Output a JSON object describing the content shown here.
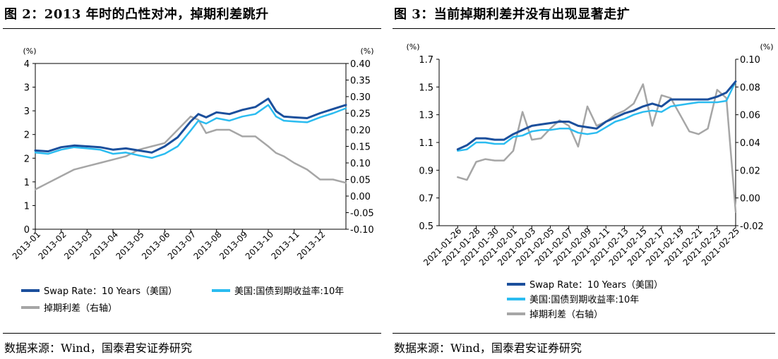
{
  "figures": [
    {
      "title": "图 2：2013 年时的凸性对冲，掉期利差跳升",
      "source": "数据来源：Wind，国泰君安证券研究"
    },
    {
      "title": "图 3：当前掉期利差并没有出现显著走扩",
      "source": "数据来源：Wind，国泰君安证券研究"
    }
  ],
  "chart_data": [
    {
      "type": "line",
      "title": "图 2：2013 年时的凸性对冲，掉期利差跳升",
      "y_left_unit": "(%)",
      "y_right_unit": "(%)",
      "y_left_range": [
        0,
        4
      ],
      "y_left_ticks": [
        "0",
        "1",
        "1",
        "2",
        "2",
        "3",
        "3",
        "4"
      ],
      "y_right_range": [
        -0.1,
        0.4
      ],
      "y_right_ticks": [
        "-0.10",
        "-0.05",
        "0.00",
        "0.05",
        "0.10",
        "0.15",
        "0.20",
        "0.25",
        "0.30",
        "0.35",
        "0.40"
      ],
      "x_ticks": [
        "2013-01",
        "2013-02",
        "2013-03",
        "2013-04",
        "2013-05",
        "2013-06",
        "2013-07",
        "2013-08",
        "2013-09",
        "2013-10",
        "2013-11",
        "2013-12"
      ],
      "x_months": [
        0,
        0.5,
        1,
        1.5,
        2,
        2.5,
        3,
        3.5,
        4,
        4.5,
        5,
        5.5,
        6,
        6.3,
        6.6,
        7,
        7.5,
        8,
        8.5,
        9,
        9.3,
        9.6,
        10,
        10.5,
        11,
        11.5,
        12
      ],
      "series": [
        {
          "name": "Swap Rate：10 Years（美国）",
          "axis": "left",
          "color": "#1b4f9c",
          "values": [
            1.9,
            1.88,
            1.98,
            2.02,
            2.0,
            1.98,
            1.92,
            1.95,
            1.9,
            1.85,
            2.0,
            2.22,
            2.6,
            2.78,
            2.7,
            2.82,
            2.78,
            2.88,
            2.95,
            3.15,
            2.85,
            2.72,
            2.7,
            2.68,
            2.8,
            2.9,
            3.0
          ]
        },
        {
          "name": "美国:国债到期收益率:10年",
          "axis": "left",
          "color": "#2bbcf0",
          "values": [
            1.85,
            1.82,
            1.92,
            1.98,
            1.95,
            1.92,
            1.82,
            1.85,
            1.78,
            1.72,
            1.82,
            2.0,
            2.38,
            2.62,
            2.55,
            2.68,
            2.62,
            2.72,
            2.78,
            3.0,
            2.72,
            2.62,
            2.6,
            2.58,
            2.7,
            2.8,
            2.92
          ]
        },
        {
          "name": "掉期利差（右轴）",
          "axis": "right",
          "color": "#a6a6a6",
          "values": [
            0.02,
            0.04,
            0.06,
            0.08,
            0.09,
            0.1,
            0.11,
            0.12,
            0.14,
            0.15,
            0.16,
            0.2,
            0.24,
            0.23,
            0.19,
            0.2,
            0.2,
            0.18,
            0.18,
            0.15,
            0.13,
            0.12,
            0.1,
            0.08,
            0.05,
            0.05,
            0.04
          ]
        }
      ],
      "legend_position": "bottom"
    },
    {
      "type": "line",
      "title": "图 3：当前掉期利差并没有出现显著走扩",
      "y_left_unit": "(%)",
      "y_right_unit": "(%)",
      "y_left_range": [
        0.5,
        1.7
      ],
      "y_left_ticks": [
        "0.5",
        "0.7",
        "0.9",
        "1.1",
        "1.3",
        "1.5",
        "1.7"
      ],
      "y_right_range": [
        -0.02,
        0.1
      ],
      "y_right_ticks": [
        "-0.02",
        "0.00",
        "0.02",
        "0.04",
        "0.06",
        "0.08",
        "0.10"
      ],
      "x_ticks": [
        "2021-01-26",
        "2021-01-28",
        "2021-01-30",
        "2021-02-01",
        "2021-02-03",
        "2021-02-05",
        "2021-02-07",
        "2021-02-09",
        "2021-02-11",
        "2021-02-13",
        "2021-02-15",
        "2021-02-17",
        "2021-02-19",
        "2021-02-21",
        "2021-02-23",
        "2021-02-25"
      ],
      "x_days": [
        0,
        1,
        2,
        3,
        4,
        5,
        6,
        7,
        8,
        9,
        10,
        11,
        12,
        13,
        14,
        15,
        16,
        17,
        18,
        19,
        20,
        21,
        22,
        23,
        24,
        25,
        26,
        27,
        28,
        29,
        30
      ],
      "series": [
        {
          "name": "Swap Rate：10 Years（美国）",
          "axis": "left",
          "color": "#1b4f9c",
          "values": [
            1.05,
            1.08,
            1.13,
            1.13,
            1.12,
            1.12,
            1.16,
            1.19,
            1.22,
            1.23,
            1.24,
            1.25,
            1.25,
            1.22,
            1.21,
            1.2,
            1.25,
            1.28,
            1.31,
            1.33,
            1.36,
            1.38,
            1.36,
            1.41,
            1.41,
            1.41,
            1.41,
            1.41,
            1.43,
            1.46,
            1.54
          ]
        },
        {
          "name": "美国:国债到期收益率:10年",
          "axis": "left",
          "color": "#2bbcf0",
          "values": [
            1.04,
            1.05,
            1.1,
            1.1,
            1.09,
            1.09,
            1.14,
            1.15,
            1.18,
            1.19,
            1.19,
            1.2,
            1.2,
            1.17,
            1.16,
            1.17,
            1.21,
            1.25,
            1.27,
            1.3,
            1.32,
            1.33,
            1.32,
            1.36,
            1.37,
            1.38,
            1.39,
            1.39,
            1.39,
            1.4,
            1.54
          ]
        },
        {
          "name": "掉期利差（右轴）",
          "axis": "right",
          "color": "#a6a6a6",
          "values": [
            0.015,
            0.013,
            0.026,
            0.028,
            0.027,
            0.027,
            0.034,
            0.062,
            0.042,
            0.043,
            0.05,
            0.056,
            0.052,
            0.037,
            0.066,
            0.052,
            0.055,
            0.06,
            0.063,
            0.068,
            0.082,
            0.052,
            0.074,
            0.072,
            0.06,
            0.048,
            0.046,
            0.05,
            0.078,
            0.072,
            -0.01
          ]
        }
      ],
      "legend_position": "bottom"
    }
  ]
}
